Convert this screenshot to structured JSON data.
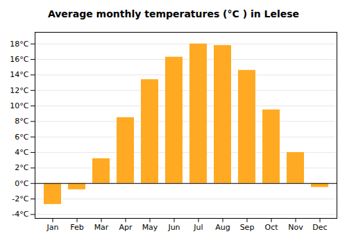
{
  "chart_data": {
    "type": "bar",
    "title": "Average monthly temperatures (°C ) in Lelese",
    "categories": [
      "Jan",
      "Feb",
      "Mar",
      "Apr",
      "May",
      "Jun",
      "Jul",
      "Aug",
      "Sep",
      "Oct",
      "Nov",
      "Dec"
    ],
    "values": [
      -2.7,
      -0.8,
      3.2,
      8.5,
      13.4,
      16.3,
      18.0,
      17.8,
      14.6,
      9.5,
      4.0,
      -0.5
    ],
    "color": "#FFAA22",
    "ylim": [
      -4.5,
      19.5
    ],
    "yticks": [
      {
        "value": -4,
        "label": "-4°C"
      },
      {
        "value": -2,
        "label": "-2°C"
      },
      {
        "value": 0,
        "label": "0°C"
      },
      {
        "value": 2,
        "label": "2°C"
      },
      {
        "value": 4,
        "label": "4°C"
      },
      {
        "value": 6,
        "label": "6°C"
      },
      {
        "value": 8,
        "label": "8°C"
      },
      {
        "value": 10,
        "label": "10°C"
      },
      {
        "value": 12,
        "label": "12°C"
      },
      {
        "value": 14,
        "label": "14°C"
      },
      {
        "value": 16,
        "label": "16°C"
      },
      {
        "value": 18,
        "label": "18°C"
      }
    ],
    "grid": true
  }
}
